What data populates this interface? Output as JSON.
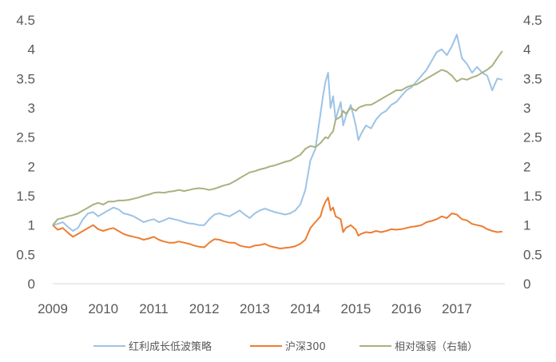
{
  "chart_data": {
    "type": "line",
    "title": "",
    "xlabel": "",
    "ylabel_left": "",
    "ylabel_right": "",
    "x_ticks": [
      "2009",
      "2010",
      "2011",
      "2012",
      "2013",
      "2014",
      "2015",
      "2016",
      "2017"
    ],
    "x_range": [
      2009.0,
      2017.95
    ],
    "y_left_ticks": [
      "0",
      "0.5",
      "1",
      "1.5",
      "2",
      "2.5",
      "3",
      "3.5",
      "4",
      "4.5"
    ],
    "y_right_ticks": [
      "0",
      "0.5",
      "1",
      "1.5",
      "2",
      "2.5",
      "3",
      "3.5",
      "4",
      "4.5"
    ],
    "y_left_range": [
      0,
      4.5
    ],
    "y_right_range": [
      0,
      4.5
    ],
    "grid": false,
    "legend_position": "bottom",
    "series": [
      {
        "name": "红利成长低波策略",
        "axis": "left",
        "color": "#9DC3E6",
        "points": [
          [
            2009.0,
            1.0
          ],
          [
            2009.1,
            1.02
          ],
          [
            2009.2,
            1.05
          ],
          [
            2009.3,
            0.97
          ],
          [
            2009.4,
            0.9
          ],
          [
            2009.5,
            0.95
          ],
          [
            2009.6,
            1.1
          ],
          [
            2009.7,
            1.2
          ],
          [
            2009.8,
            1.22
          ],
          [
            2009.9,
            1.15
          ],
          [
            2010.0,
            1.2
          ],
          [
            2010.1,
            1.25
          ],
          [
            2010.2,
            1.3
          ],
          [
            2010.3,
            1.27
          ],
          [
            2010.4,
            1.2
          ],
          [
            2010.5,
            1.18
          ],
          [
            2010.6,
            1.15
          ],
          [
            2010.7,
            1.1
          ],
          [
            2010.8,
            1.05
          ],
          [
            2010.9,
            1.08
          ],
          [
            2011.0,
            1.1
          ],
          [
            2011.1,
            1.05
          ],
          [
            2011.2,
            1.08
          ],
          [
            2011.3,
            1.12
          ],
          [
            2011.4,
            1.1
          ],
          [
            2011.5,
            1.08
          ],
          [
            2011.6,
            1.05
          ],
          [
            2011.7,
            1.03
          ],
          [
            2011.8,
            1.02
          ],
          [
            2011.9,
            1.0
          ],
          [
            2012.0,
            1.0
          ],
          [
            2012.1,
            1.1
          ],
          [
            2012.2,
            1.18
          ],
          [
            2012.3,
            1.2
          ],
          [
            2012.4,
            1.17
          ],
          [
            2012.5,
            1.15
          ],
          [
            2012.6,
            1.2
          ],
          [
            2012.7,
            1.25
          ],
          [
            2012.8,
            1.18
          ],
          [
            2012.9,
            1.12
          ],
          [
            2013.0,
            1.2
          ],
          [
            2013.1,
            1.25
          ],
          [
            2013.2,
            1.28
          ],
          [
            2013.3,
            1.25
          ],
          [
            2013.4,
            1.22
          ],
          [
            2013.5,
            1.2
          ],
          [
            2013.6,
            1.18
          ],
          [
            2013.7,
            1.2
          ],
          [
            2013.8,
            1.25
          ],
          [
            2013.9,
            1.35
          ],
          [
            2014.0,
            1.6
          ],
          [
            2014.1,
            2.1
          ],
          [
            2014.2,
            2.3
          ],
          [
            2014.3,
            2.9
          ],
          [
            2014.35,
            3.2
          ],
          [
            2014.4,
            3.45
          ],
          [
            2014.45,
            3.6
          ],
          [
            2014.5,
            3.0
          ],
          [
            2014.55,
            3.2
          ],
          [
            2014.6,
            2.8
          ],
          [
            2014.7,
            3.1
          ],
          [
            2014.75,
            2.7
          ],
          [
            2014.8,
            2.85
          ],
          [
            2014.9,
            3.05
          ],
          [
            2015.0,
            2.7
          ],
          [
            2015.05,
            2.45
          ],
          [
            2015.1,
            2.55
          ],
          [
            2015.2,
            2.7
          ],
          [
            2015.3,
            2.65
          ],
          [
            2015.4,
            2.8
          ],
          [
            2015.5,
            2.9
          ],
          [
            2015.6,
            2.95
          ],
          [
            2015.7,
            3.05
          ],
          [
            2015.8,
            3.1
          ],
          [
            2015.9,
            3.2
          ],
          [
            2016.0,
            3.3
          ],
          [
            2016.1,
            3.35
          ],
          [
            2016.2,
            3.45
          ],
          [
            2016.3,
            3.55
          ],
          [
            2016.4,
            3.65
          ],
          [
            2016.5,
            3.8
          ],
          [
            2016.6,
            3.95
          ],
          [
            2016.7,
            4.0
          ],
          [
            2016.8,
            3.9
          ],
          [
            2016.9,
            4.05
          ],
          [
            2017.0,
            4.25
          ],
          [
            2017.1,
            3.85
          ],
          [
            2017.2,
            3.75
          ],
          [
            2017.3,
            3.6
          ],
          [
            2017.4,
            3.7
          ],
          [
            2017.5,
            3.6
          ],
          [
            2017.6,
            3.55
          ],
          [
            2017.7,
            3.3
          ],
          [
            2017.8,
            3.5
          ],
          [
            2017.9,
            3.48
          ]
        ]
      },
      {
        "name": "沪深300",
        "axis": "left",
        "color": "#ED7D31",
        "points": [
          [
            2009.0,
            1.0
          ],
          [
            2009.1,
            0.92
          ],
          [
            2009.2,
            0.95
          ],
          [
            2009.3,
            0.87
          ],
          [
            2009.4,
            0.8
          ],
          [
            2009.5,
            0.85
          ],
          [
            2009.6,
            0.9
          ],
          [
            2009.7,
            0.95
          ],
          [
            2009.8,
            1.0
          ],
          [
            2009.9,
            0.93
          ],
          [
            2010.0,
            0.9
          ],
          [
            2010.1,
            0.93
          ],
          [
            2010.2,
            0.95
          ],
          [
            2010.3,
            0.9
          ],
          [
            2010.4,
            0.85
          ],
          [
            2010.5,
            0.82
          ],
          [
            2010.6,
            0.8
          ],
          [
            2010.7,
            0.78
          ],
          [
            2010.8,
            0.75
          ],
          [
            2010.9,
            0.77
          ],
          [
            2011.0,
            0.8
          ],
          [
            2011.1,
            0.75
          ],
          [
            2011.2,
            0.72
          ],
          [
            2011.3,
            0.7
          ],
          [
            2011.4,
            0.7
          ],
          [
            2011.5,
            0.72
          ],
          [
            2011.6,
            0.7
          ],
          [
            2011.7,
            0.68
          ],
          [
            2011.8,
            0.65
          ],
          [
            2011.9,
            0.63
          ],
          [
            2012.0,
            0.62
          ],
          [
            2012.1,
            0.7
          ],
          [
            2012.2,
            0.76
          ],
          [
            2012.3,
            0.75
          ],
          [
            2012.4,
            0.72
          ],
          [
            2012.5,
            0.7
          ],
          [
            2012.6,
            0.7
          ],
          [
            2012.7,
            0.65
          ],
          [
            2012.8,
            0.63
          ],
          [
            2012.9,
            0.62
          ],
          [
            2013.0,
            0.65
          ],
          [
            2013.1,
            0.66
          ],
          [
            2013.2,
            0.68
          ],
          [
            2013.3,
            0.64
          ],
          [
            2013.4,
            0.62
          ],
          [
            2013.5,
            0.6
          ],
          [
            2013.6,
            0.61
          ],
          [
            2013.7,
            0.62
          ],
          [
            2013.8,
            0.64
          ],
          [
            2013.9,
            0.68
          ],
          [
            2014.0,
            0.75
          ],
          [
            2014.1,
            0.95
          ],
          [
            2014.2,
            1.05
          ],
          [
            2014.3,
            1.15
          ],
          [
            2014.35,
            1.3
          ],
          [
            2014.4,
            1.4
          ],
          [
            2014.45,
            1.47
          ],
          [
            2014.5,
            1.25
          ],
          [
            2014.55,
            1.3
          ],
          [
            2014.6,
            1.15
          ],
          [
            2014.7,
            1.1
          ],
          [
            2014.75,
            0.88
          ],
          [
            2014.8,
            0.95
          ],
          [
            2014.9,
            1.0
          ],
          [
            2015.0,
            0.92
          ],
          [
            2015.05,
            0.82
          ],
          [
            2015.1,
            0.85
          ],
          [
            2015.2,
            0.88
          ],
          [
            2015.3,
            0.87
          ],
          [
            2015.4,
            0.9
          ],
          [
            2015.5,
            0.88
          ],
          [
            2015.6,
            0.9
          ],
          [
            2015.7,
            0.93
          ],
          [
            2015.8,
            0.92
          ],
          [
            2015.9,
            0.93
          ],
          [
            2016.0,
            0.95
          ],
          [
            2016.1,
            0.97
          ],
          [
            2016.2,
            0.98
          ],
          [
            2016.3,
            1.0
          ],
          [
            2016.4,
            1.05
          ],
          [
            2016.5,
            1.07
          ],
          [
            2016.6,
            1.1
          ],
          [
            2016.7,
            1.15
          ],
          [
            2016.8,
            1.12
          ],
          [
            2016.9,
            1.2
          ],
          [
            2017.0,
            1.18
          ],
          [
            2017.1,
            1.1
          ],
          [
            2017.2,
            1.08
          ],
          [
            2017.3,
            1.02
          ],
          [
            2017.4,
            1.0
          ],
          [
            2017.5,
            0.98
          ],
          [
            2017.6,
            0.93
          ],
          [
            2017.7,
            0.9
          ],
          [
            2017.8,
            0.88
          ],
          [
            2017.9,
            0.89
          ]
        ]
      },
      {
        "name": "相对强弱（右轴）",
        "axis": "right",
        "color": "#A9B17F",
        "points": [
          [
            2009.0,
            1.0
          ],
          [
            2009.1,
            1.1
          ],
          [
            2009.2,
            1.12
          ],
          [
            2009.3,
            1.15
          ],
          [
            2009.4,
            1.17
          ],
          [
            2009.5,
            1.2
          ],
          [
            2009.6,
            1.25
          ],
          [
            2009.7,
            1.3
          ],
          [
            2009.8,
            1.35
          ],
          [
            2009.9,
            1.38
          ],
          [
            2010.0,
            1.35
          ],
          [
            2010.1,
            1.4
          ],
          [
            2010.2,
            1.4
          ],
          [
            2010.3,
            1.42
          ],
          [
            2010.4,
            1.42
          ],
          [
            2010.5,
            1.43
          ],
          [
            2010.6,
            1.45
          ],
          [
            2010.7,
            1.47
          ],
          [
            2010.8,
            1.5
          ],
          [
            2010.9,
            1.52
          ],
          [
            2011.0,
            1.55
          ],
          [
            2011.1,
            1.56
          ],
          [
            2011.2,
            1.55
          ],
          [
            2011.3,
            1.57
          ],
          [
            2011.4,
            1.58
          ],
          [
            2011.5,
            1.6
          ],
          [
            2011.6,
            1.58
          ],
          [
            2011.7,
            1.6
          ],
          [
            2011.8,
            1.62
          ],
          [
            2011.9,
            1.63
          ],
          [
            2012.0,
            1.62
          ],
          [
            2012.1,
            1.6
          ],
          [
            2012.2,
            1.62
          ],
          [
            2012.3,
            1.65
          ],
          [
            2012.4,
            1.68
          ],
          [
            2012.5,
            1.7
          ],
          [
            2012.6,
            1.75
          ],
          [
            2012.7,
            1.8
          ],
          [
            2012.8,
            1.85
          ],
          [
            2012.9,
            1.9
          ],
          [
            2013.0,
            1.92
          ],
          [
            2013.1,
            1.95
          ],
          [
            2013.2,
            1.97
          ],
          [
            2013.3,
            2.0
          ],
          [
            2013.4,
            2.02
          ],
          [
            2013.5,
            2.05
          ],
          [
            2013.6,
            2.08
          ],
          [
            2013.7,
            2.1
          ],
          [
            2013.8,
            2.15
          ],
          [
            2013.9,
            2.2
          ],
          [
            2014.0,
            2.3
          ],
          [
            2014.1,
            2.35
          ],
          [
            2014.2,
            2.33
          ],
          [
            2014.3,
            2.4
          ],
          [
            2014.35,
            2.45
          ],
          [
            2014.4,
            2.5
          ],
          [
            2014.45,
            2.48
          ],
          [
            2014.5,
            2.55
          ],
          [
            2014.55,
            2.6
          ],
          [
            2014.6,
            2.8
          ],
          [
            2014.7,
            2.85
          ],
          [
            2014.75,
            2.95
          ],
          [
            2014.8,
            2.9
          ],
          [
            2014.9,
            3.0
          ],
          [
            2015.0,
            2.95
          ],
          [
            2015.05,
            3.0
          ],
          [
            2015.1,
            3.02
          ],
          [
            2015.2,
            3.05
          ],
          [
            2015.3,
            3.05
          ],
          [
            2015.4,
            3.1
          ],
          [
            2015.5,
            3.15
          ],
          [
            2015.6,
            3.2
          ],
          [
            2015.7,
            3.25
          ],
          [
            2015.8,
            3.3
          ],
          [
            2015.9,
            3.3
          ],
          [
            2016.0,
            3.35
          ],
          [
            2016.1,
            3.38
          ],
          [
            2016.2,
            3.4
          ],
          [
            2016.3,
            3.45
          ],
          [
            2016.4,
            3.5
          ],
          [
            2016.5,
            3.55
          ],
          [
            2016.6,
            3.6
          ],
          [
            2016.7,
            3.65
          ],
          [
            2016.8,
            3.62
          ],
          [
            2016.9,
            3.55
          ],
          [
            2017.0,
            3.45
          ],
          [
            2017.1,
            3.5
          ],
          [
            2017.2,
            3.48
          ],
          [
            2017.3,
            3.52
          ],
          [
            2017.4,
            3.55
          ],
          [
            2017.5,
            3.6
          ],
          [
            2017.6,
            3.65
          ],
          [
            2017.7,
            3.72
          ],
          [
            2017.8,
            3.85
          ],
          [
            2017.9,
            3.97
          ]
        ]
      }
    ]
  }
}
